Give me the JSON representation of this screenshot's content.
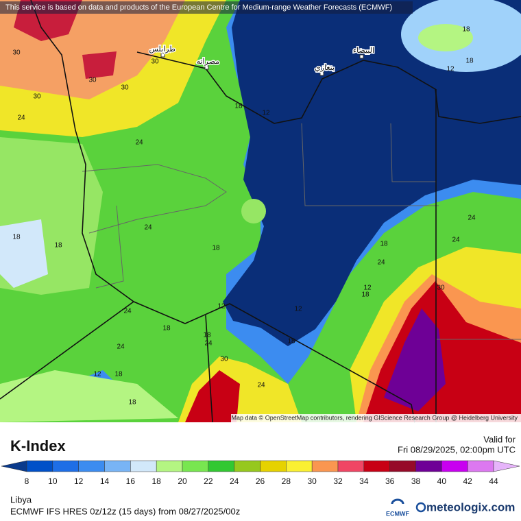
{
  "header": {
    "notice": "This service is based on data and products of the European Centre for Medium-range Weather Forecasts (ECMWF)",
    "attribution": "Map data © OpenStreetMap contributors, rendering GIScience Research Group @ Heidelberg University"
  },
  "map": {
    "cities": [
      {
        "label": "طرابلس"
      },
      {
        "label": "مصراته"
      },
      {
        "label": "البيضاء"
      },
      {
        "label": "بنغازي"
      }
    ],
    "contour_labels": [
      30,
      30,
      30,
      30,
      30,
      24,
      24,
      18,
      12,
      18,
      18,
      12,
      24,
      18,
      18,
      18,
      24,
      18,
      24,
      24,
      12,
      18,
      30,
      12,
      12,
      24,
      18,
      18,
      24,
      18,
      24,
      30,
      12,
      18,
      24,
      18
    ]
  },
  "legend": {
    "title": "K-Index",
    "valid_label": "Valid for",
    "valid_time": "Fri 08/29/2025, 02:00pm UTC",
    "ticks": [
      8,
      10,
      12,
      14,
      16,
      18,
      20,
      22,
      24,
      26,
      28,
      30,
      32,
      34,
      36,
      38,
      40,
      42,
      44
    ],
    "colors": [
      "#0a3a8c",
      "#0050c8",
      "#1e6ee6",
      "#3c8cf0",
      "#78b4f5",
      "#d2e8fa",
      "#b4f582",
      "#78e650",
      "#32c832",
      "#96c81e",
      "#e6d200",
      "#faf032",
      "#fa9650",
      "#f04664",
      "#c80014",
      "#960a28",
      "#6e0096",
      "#c800f0",
      "#dc78f0",
      "#e6b4fa"
    ]
  },
  "footer": {
    "region": "Libya",
    "model": "ECMWF IFS HRES 0z/12z (15 days) from 08/27/2025/00z",
    "ecmwf": "ECMWF",
    "brand": "meteologix.com"
  }
}
